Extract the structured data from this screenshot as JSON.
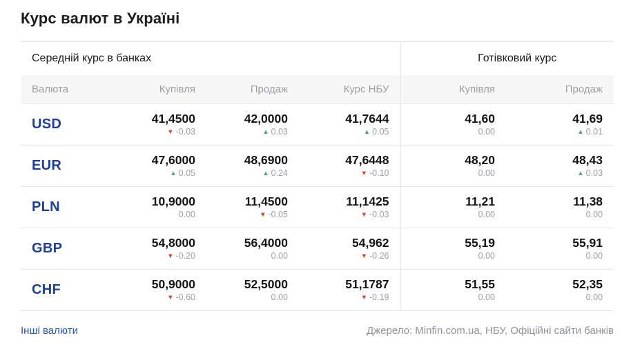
{
  "page": {
    "title": "Курс валют в Україні"
  },
  "table": {
    "sections": {
      "banks": "Середній курс в банках",
      "cash": "Готівковий курс"
    },
    "columns": {
      "currency": "Валюта",
      "bank_buy": "Купівля",
      "bank_sell": "Продаж",
      "nbu": "Курс НБУ",
      "cash_buy": "Купівля",
      "cash_sell": "Продаж"
    },
    "rows": [
      {
        "code": "USD",
        "bank_buy": {
          "value": "41,4500",
          "change": "-0.03",
          "direction": "down"
        },
        "bank_sell": {
          "value": "42,0000",
          "change": "0.03",
          "direction": "up"
        },
        "nbu": {
          "value": "41,7644",
          "change": "0.05",
          "direction": "up"
        },
        "cash_buy": {
          "value": "41,60",
          "change": "0.00",
          "direction": "none"
        },
        "cash_sell": {
          "value": "41,69",
          "change": "0.01",
          "direction": "up"
        }
      },
      {
        "code": "EUR",
        "bank_buy": {
          "value": "47,6000",
          "change": "0.05",
          "direction": "up"
        },
        "bank_sell": {
          "value": "48,6900",
          "change": "0.24",
          "direction": "up"
        },
        "nbu": {
          "value": "47,6448",
          "change": "-0.10",
          "direction": "down"
        },
        "cash_buy": {
          "value": "48,20",
          "change": "0.00",
          "direction": "none"
        },
        "cash_sell": {
          "value": "48,43",
          "change": "0.03",
          "direction": "up"
        }
      },
      {
        "code": "PLN",
        "bank_buy": {
          "value": "10,9000",
          "change": "0.00",
          "direction": "none"
        },
        "bank_sell": {
          "value": "11,4500",
          "change": "-0.05",
          "direction": "down"
        },
        "nbu": {
          "value": "11,1425",
          "change": "-0.03",
          "direction": "down"
        },
        "cash_buy": {
          "value": "11,21",
          "change": "0.00",
          "direction": "none"
        },
        "cash_sell": {
          "value": "11,38",
          "change": "0.00",
          "direction": "none"
        }
      },
      {
        "code": "GBP",
        "bank_buy": {
          "value": "54,8000",
          "change": "-0.20",
          "direction": "down"
        },
        "bank_sell": {
          "value": "56,4000",
          "change": "0.00",
          "direction": "none"
        },
        "nbu": {
          "value": "54,962",
          "change": "-0.26",
          "direction": "down"
        },
        "cash_buy": {
          "value": "55,19",
          "change": "0.00",
          "direction": "none"
        },
        "cash_sell": {
          "value": "55,91",
          "change": "0.00",
          "direction": "none"
        }
      },
      {
        "code": "CHF",
        "bank_buy": {
          "value": "50,9000",
          "change": "-0.60",
          "direction": "down"
        },
        "bank_sell": {
          "value": "52,5000",
          "change": "0.00",
          "direction": "none"
        },
        "nbu": {
          "value": "51,1787",
          "change": "-0.19",
          "direction": "down"
        },
        "cash_buy": {
          "value": "51,55",
          "change": "0.00",
          "direction": "none"
        },
        "cash_sell": {
          "value": "52,35",
          "change": "0.00",
          "direction": "none"
        }
      }
    ]
  },
  "footer": {
    "other_currencies": "Інші валюти",
    "source": "Джерело: Minfin.com.ua, НБУ, Офіційні сайти банків"
  },
  "colors": {
    "accent_blue": "#1e3f99",
    "link_blue": "#2357a8",
    "up_green": "#46a57d",
    "down_red": "#e23d25",
    "muted_gray": "#9aa0a6",
    "header_bg": "#f7f7f7",
    "border": "#e4e4e6"
  }
}
